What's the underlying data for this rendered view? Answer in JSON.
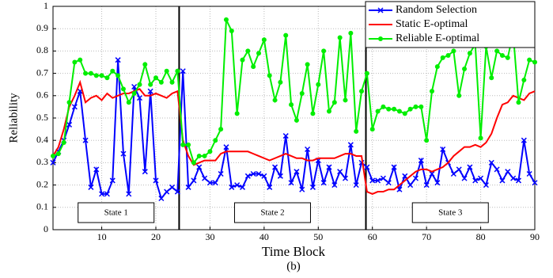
{
  "chart_data": {
    "type": "line",
    "title": "(b)",
    "xlabel": "Time Block",
    "ylabel": "Reliability",
    "x": [
      1,
      2,
      3,
      4,
      5,
      6,
      7,
      8,
      9,
      10,
      11,
      12,
      13,
      14,
      15,
      16,
      17,
      18,
      19,
      20,
      21,
      22,
      23,
      24,
      25,
      26,
      27,
      28,
      29,
      30,
      31,
      32,
      33,
      34,
      35,
      36,
      37,
      38,
      39,
      40,
      41,
      42,
      43,
      44,
      45,
      46,
      47,
      48,
      49,
      50,
      51,
      52,
      53,
      54,
      55,
      56,
      57,
      58,
      59,
      60,
      61,
      62,
      63,
      64,
      65,
      66,
      67,
      68,
      69,
      70,
      71,
      72,
      73,
      74,
      75,
      76,
      77,
      78,
      79,
      80,
      81,
      82,
      83,
      84,
      85,
      86,
      87,
      88,
      89,
      90
    ],
    "series": [
      {
        "name": "Random Selection",
        "color": "#0000ff",
        "marker": "x",
        "values": [
          0.3,
          0.35,
          0.4,
          0.47,
          0.55,
          0.62,
          0.4,
          0.19,
          0.27,
          0.16,
          0.16,
          0.22,
          0.76,
          0.34,
          0.16,
          0.64,
          0.59,
          0.26,
          0.62,
          0.22,
          0.14,
          0.17,
          0.19,
          0.17,
          0.71,
          0.19,
          0.22,
          0.28,
          0.23,
          0.21,
          0.21,
          0.25,
          0.37,
          0.19,
          0.2,
          0.19,
          0.24,
          0.25,
          0.25,
          0.24,
          0.19,
          0.28,
          0.24,
          0.42,
          0.21,
          0.26,
          0.18,
          0.36,
          0.19,
          0.31,
          0.21,
          0.28,
          0.2,
          0.26,
          0.23,
          0.38,
          0.2,
          0.3,
          0.28,
          0.22,
          0.22,
          0.23,
          0.21,
          0.28,
          0.18,
          0.24,
          0.2,
          0.23,
          0.31,
          0.2,
          0.25,
          0.21,
          0.36,
          0.3,
          0.25,
          0.27,
          0.23,
          0.28,
          0.22,
          0.23,
          0.2,
          0.3,
          0.27,
          0.22,
          0.26,
          0.23,
          0.22,
          0.4,
          0.25,
          0.21
        ]
      },
      {
        "name": "Static E-optimal",
        "color": "#ff0000",
        "marker": "none",
        "values": [
          0.33,
          0.37,
          0.45,
          0.55,
          0.6,
          0.66,
          0.57,
          0.59,
          0.6,
          0.58,
          0.61,
          0.59,
          0.6,
          0.61,
          0.61,
          0.62,
          0.63,
          0.6,
          0.6,
          0.61,
          0.6,
          0.59,
          0.61,
          0.62,
          0.4,
          0.33,
          0.29,
          0.3,
          0.31,
          0.31,
          0.31,
          0.34,
          0.35,
          0.35,
          0.35,
          0.35,
          0.35,
          0.34,
          0.33,
          0.32,
          0.31,
          0.32,
          0.33,
          0.34,
          0.33,
          0.32,
          0.32,
          0.31,
          0.31,
          0.32,
          0.32,
          0.32,
          0.32,
          0.33,
          0.34,
          0.34,
          0.33,
          0.33,
          0.17,
          0.16,
          0.17,
          0.17,
          0.18,
          0.18,
          0.2,
          0.22,
          0.24,
          0.26,
          0.27,
          0.27,
          0.26,
          0.27,
          0.28,
          0.3,
          0.33,
          0.35,
          0.37,
          0.37,
          0.38,
          0.37,
          0.39,
          0.43,
          0.5,
          0.56,
          0.57,
          0.6,
          0.59,
          0.58,
          0.61,
          0.62
        ]
      },
      {
        "name": "Reliable E-optimal",
        "color": "#00ee00",
        "marker": "o",
        "values": [
          0.33,
          0.34,
          0.39,
          0.57,
          0.75,
          0.76,
          0.7,
          0.7,
          0.69,
          0.69,
          0.68,
          0.71,
          0.69,
          0.63,
          0.57,
          0.61,
          0.65,
          0.74,
          0.65,
          0.68,
          0.66,
          0.71,
          0.66,
          0.71,
          0.38,
          0.38,
          0.3,
          0.33,
          0.33,
          0.35,
          0.4,
          0.45,
          0.94,
          0.89,
          0.52,
          0.76,
          0.8,
          0.73,
          0.79,
          0.85,
          0.69,
          0.58,
          0.66,
          0.87,
          0.56,
          0.49,
          0.61,
          0.74,
          0.52,
          0.65,
          0.8,
          0.53,
          0.57,
          0.86,
          0.58,
          0.88,
          0.44,
          0.62,
          0.7,
          0.45,
          0.53,
          0.55,
          0.54,
          0.54,
          0.53,
          0.52,
          0.54,
          0.55,
          0.55,
          0.4,
          0.62,
          0.73,
          0.77,
          0.78,
          0.8,
          0.6,
          0.72,
          0.79,
          0.83,
          0.41,
          0.82,
          0.68,
          0.8,
          0.78,
          0.77,
          0.88,
          0.57,
          0.67,
          0.76,
          0.75
        ]
      }
    ],
    "state_boundaries": [
      24.3,
      58.8
    ],
    "states": [
      "State 1",
      "State 2",
      "State 3"
    ],
    "xlim": [
      1,
      90
    ],
    "ylim": [
      0,
      1
    ],
    "xticks": [
      10,
      20,
      30,
      40,
      50,
      60,
      70,
      80,
      90
    ],
    "yticks": [
      0,
      0.1,
      0.2,
      0.3,
      0.4,
      0.5,
      0.6,
      0.7,
      0.8,
      0.9,
      1
    ],
    "grid": true,
    "legend": "top-right"
  }
}
